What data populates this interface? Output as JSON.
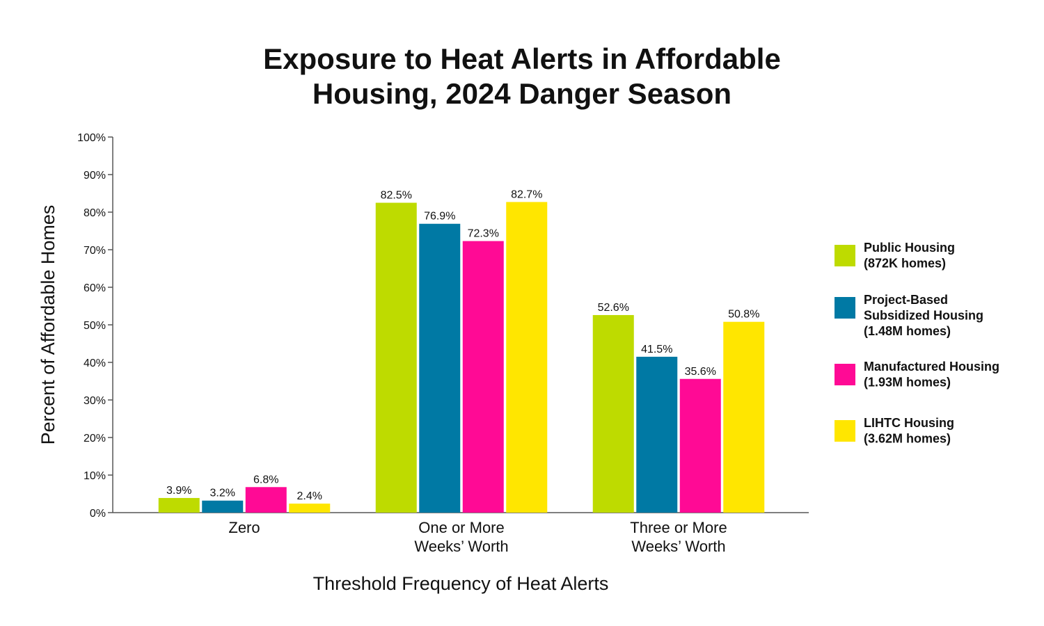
{
  "chart_data": {
    "type": "bar",
    "title": [
      "Exposure to Heat Alerts in Affordable",
      "Housing, 2024 Danger Season"
    ],
    "xlabel": "Threshold Frequency of Heat Alerts",
    "ylabel": "Percent of Affordable Homes",
    "ylim": [
      0,
      100
    ],
    "yticks": [
      "0%",
      "10%",
      "20%",
      "30%",
      "40%",
      "50%",
      "60%",
      "70%",
      "80%",
      "90%",
      "100%"
    ],
    "categories": [
      [
        "Zero"
      ],
      [
        "One or More",
        "Weeks’ Worth"
      ],
      [
        "Three or More",
        "Weeks’ Worth"
      ]
    ],
    "series": [
      {
        "name": [
          "Public Housing",
          "(872K homes)"
        ],
        "color": "#BEDB00",
        "values": [
          3.9,
          82.5,
          52.6
        ],
        "labels": [
          "3.9%",
          "82.5%",
          "52.6%"
        ]
      },
      {
        "name": [
          "Project-Based",
          "Subsidized Housing",
          "(1.48M homes)"
        ],
        "color": "#0079A4",
        "values": [
          3.2,
          76.9,
          41.5
        ],
        "labels": [
          "3.2%",
          "76.9%",
          "41.5%"
        ]
      },
      {
        "name": [
          "Manufactured Housing",
          "(1.93M homes)"
        ],
        "color": "#FF0A95",
        "values": [
          6.8,
          72.3,
          35.6
        ],
        "labels": [
          "6.8%",
          "72.3%",
          "35.6%"
        ]
      },
      {
        "name": [
          "LIHTC Housing",
          "(3.62M homes)"
        ],
        "color": "#FFE600",
        "values": [
          2.4,
          82.7,
          50.8
        ],
        "labels": [
          "2.4%",
          "82.7%",
          "50.8%"
        ]
      }
    ],
    "legend_position": "right",
    "grid": false
  }
}
